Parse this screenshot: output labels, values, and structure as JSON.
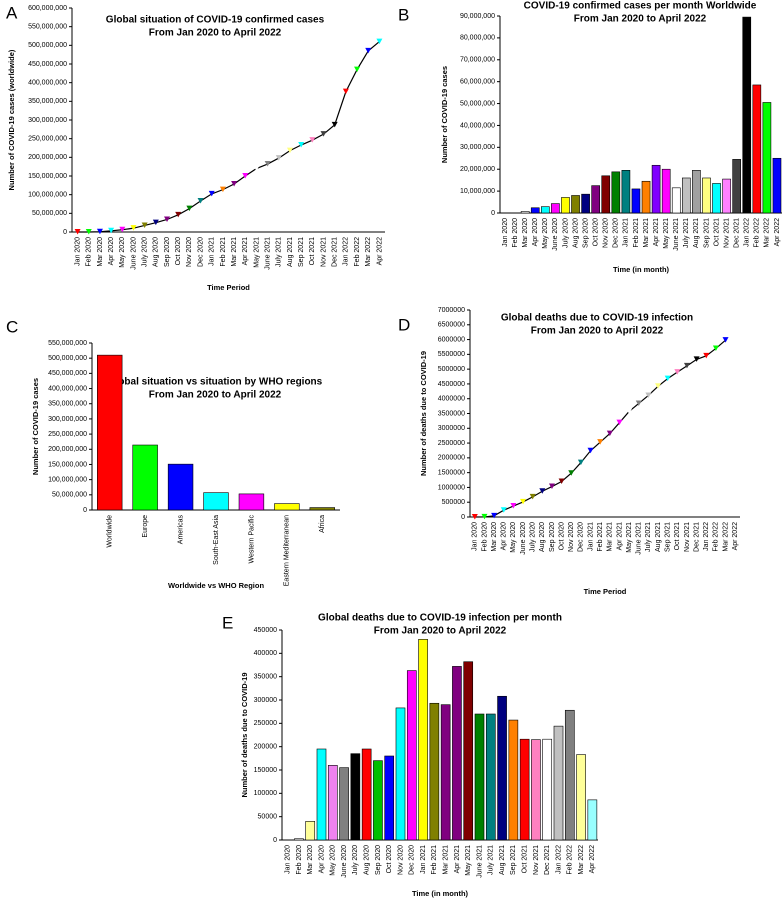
{
  "chart_data": [
    {
      "type": "line",
      "panel": "A",
      "title": "Global situation of COVID-19 confirmed cases",
      "subtitle": "From Jan 2020 to April 2022",
      "x_label": "Time Period",
      "y_label": "Number of COVID-19 cases (worldwide)",
      "categories": [
        "Jan 2020",
        "Feb 2020",
        "Mar 2020",
        "Apr 2020",
        "May 2020",
        "June 2020",
        "July 2020",
        "Aug 2020",
        "Sep 2020",
        "Oct 2020",
        "Nov 2020",
        "Dec 2020",
        "Jan 2021",
        "Feb 2021",
        "Mar 2021",
        "Apr 2021",
        "May 2021",
        "June 2021",
        "July 2021",
        "Aug 2021",
        "Sep 2021",
        "Oct 2021",
        "Nov 2021",
        "Dec 2021",
        "Jan 2022",
        "Feb 2022",
        "Mar 2022",
        "Apr 2022"
      ],
      "values": [
        10000,
        80000,
        750000,
        3200000,
        6000000,
        10300000,
        17500000,
        25000000,
        33500000,
        46000000,
        62500000,
        83000000,
        102000000,
        113500000,
        128500000,
        150000000,
        170000000,
        182000000,
        198000000,
        218000000,
        233000000,
        246000000,
        262000000,
        287000000,
        376000000,
        435000000,
        485000000,
        510000000
      ],
      "color": "#000000",
      "marker_colors": [
        "#ff0000",
        "#00ff00",
        "#0000ff",
        "#00ffff",
        "#ff00ff",
        "#ffff00",
        "#808000",
        "#000080",
        "#800080",
        "#800000",
        "#008000",
        "#008080",
        "#0000ff",
        "#ff8000",
        "#800080",
        "#ff00ff",
        "#ffffff",
        "#808080",
        "#c0c0c0",
        "#ffff80",
        "#00ffff",
        "#ff80c0",
        "#404040",
        "#000000",
        "#ff0000",
        "#00ff00",
        "#0000ff",
        "#00ffff"
      ],
      "ylim": [
        0,
        600000000
      ],
      "yticks": [
        0,
        {
          "value": 50000000,
          "label": "50,000,000"
        },
        {
          "value": 100000000,
          "label": "100,000,000"
        },
        {
          "value": 150000000,
          "label": "150,000,000"
        },
        {
          "value": 200000000,
          "label": "200,000,000"
        },
        {
          "value": 250000000,
          "label": "250,000,000"
        },
        {
          "value": 300000000,
          "label": "300,000,000"
        },
        {
          "value": 350000000,
          "label": "350,000,000"
        },
        {
          "value": 400000000,
          "label": "400,000,000"
        },
        {
          "value": 450000000,
          "label": "450,000,000"
        },
        {
          "value": 500000000,
          "label": "500,000,000"
        },
        {
          "value": 550000000,
          "label": "550,000,000"
        },
        {
          "value": 600000000,
          "label": "600,000,000"
        }
      ]
    },
    {
      "type": "bar",
      "panel": "B",
      "title": "COVID-19 confirmed cases per month Worldwide",
      "subtitle": "From Jan 2020 to April 2022",
      "x_label": "Time (in month)",
      "y_label": "Number of COVID-19 cases",
      "categories": [
        "Jan 2020",
        "Feb 2020",
        "Mar 2020",
        "Apr 2020",
        "May 2020",
        "June 2020",
        "July 2020",
        "Aug 2020",
        "Sep 2020",
        "Oct 2020",
        "Nov 2020",
        "Dec 2020",
        "Jan 2021",
        "Feb 2021",
        "Mar 2021",
        "Apr 2021",
        "May 2021",
        "June 2021",
        "July 2021",
        "Aug 2021",
        "Sep 2021",
        "Oct 2021",
        "Nov 2021",
        "Dec 2021",
        "Jan 2022",
        "Feb 2022",
        "Mar 2022",
        "Apr 2022"
      ],
      "values": [
        10000,
        70000,
        700000,
        2400000,
        2900000,
        4300000,
        7100000,
        8000000,
        8600000,
        12500000,
        17000000,
        18800000,
        19500000,
        11000000,
        14500000,
        21800000,
        20000000,
        11500000,
        16000000,
        19500000,
        16000000,
        13500000,
        15500000,
        24500000,
        89500000,
        58500000,
        50500000,
        25000000
      ],
      "colors": [
        "#ffffff",
        "#ffffff",
        "#ffffff",
        "#0000ff",
        "#00ffff",
        "#ff00ff",
        "#ffff00",
        "#808000",
        "#000080",
        "#800080",
        "#800000",
        "#008000",
        "#008080",
        "#0000ff",
        "#ff8000",
        "#8000ff",
        "#ff00ff",
        "#ffffff",
        "#c0c0c0",
        "#a0a0a0",
        "#ffff80",
        "#00ffff",
        "#ff80ff",
        "#404040",
        "#000000",
        "#ff0000",
        "#00ff00",
        "#0000ff"
      ],
      "ylim": [
        0,
        90000000
      ],
      "yticks": [
        0,
        {
          "value": 10000000,
          "label": "10,000,000"
        },
        {
          "value": 20000000,
          "label": "20,000,000"
        },
        {
          "value": 30000000,
          "label": "30,000,000"
        },
        {
          "value": 40000000,
          "label": "40,000,000"
        },
        {
          "value": 50000000,
          "label": "50,000,000"
        },
        {
          "value": 60000000,
          "label": "60,000,000"
        },
        {
          "value": 70000000,
          "label": "70,000,000"
        },
        {
          "value": 80000000,
          "label": "80,000,000"
        },
        {
          "value": 90000000,
          "label": "90,000,000"
        }
      ]
    },
    {
      "type": "bar",
      "panel": "C",
      "title": "Global situation vs  situation by WHO regions",
      "subtitle": "From Jan 2020 to April 2022",
      "x_label": "Worldwide vs WHO Region",
      "y_label": "Number of COVID-19 cases",
      "categories": [
        "Worldwide",
        "Europe",
        "Americas",
        "South-East Asia",
        "Western Pacific",
        "Eastern Mediterranean",
        "Africa"
      ],
      "values": [
        510000000,
        214000000,
        151000000,
        57000000,
        53000000,
        21000000,
        8000000
      ],
      "colors": [
        "#ff0000",
        "#00ff00",
        "#0000ff",
        "#00ffff",
        "#ff00ff",
        "#ffff00",
        "#808000"
      ],
      "ylim": [
        0,
        550000000
      ],
      "yticks": [
        0,
        {
          "value": 50000000,
          "label": "50,000,000"
        },
        {
          "value": 100000000,
          "label": "100,000,000"
        },
        {
          "value": 150000000,
          "label": "150,000,000"
        },
        {
          "value": 200000000,
          "label": "200,000,000"
        },
        {
          "value": 250000000,
          "label": "250,000,000"
        },
        {
          "value": 300000000,
          "label": "300,000,000"
        },
        {
          "value": 350000000,
          "label": "350,000,000"
        },
        {
          "value": 400000000,
          "label": "400,000,000"
        },
        {
          "value": 450000000,
          "label": "450,000,000"
        },
        {
          "value": 500000000,
          "label": "500,000,000"
        },
        {
          "value": 550000000,
          "label": "550,000,000"
        }
      ]
    },
    {
      "type": "line",
      "panel": "D",
      "title": "Global deaths due to COVID-19 infection",
      "subtitle": "From Jan 2020 to April 2022",
      "x_label": "Time Period",
      "y_label": "Number of deaths due to COVID-19",
      "categories": [
        "Jan 2020",
        "Feb 2020",
        "Mar 2020",
        "Apr 2020",
        "May 2020",
        "June 2020",
        "July 2020",
        "Aug 2020",
        "Sep 2020",
        "Oct 2020",
        "Nov 2020",
        "Dec 2020",
        "Jan 2021",
        "Feb 2021",
        "Mar 2021",
        "Apr 2021",
        "May 2021",
        "June 2021",
        "July 2021",
        "Aug 2021",
        "Sep 2021",
        "Oct 2021",
        "Nov 2021",
        "Dec 2021",
        "Jan 2022",
        "Feb 2022",
        "Mar 2022",
        "Apr 2022"
      ],
      "values": [
        200,
        2900,
        40000,
        230000,
        370000,
        510000,
        680000,
        870000,
        1030000,
        1200000,
        1480000,
        1840000,
        2240000,
        2530000,
        2820000,
        3190000,
        3570000,
        3840000,
        4110000,
        4420000,
        4680000,
        4900000,
        5110000,
        5330000,
        5450000,
        5700000,
        5980000,
        null
      ],
      "color": "#000000",
      "marker_colors": [
        "#ff0000",
        "#00ff00",
        "#0000ff",
        "#00ffff",
        "#ff00ff",
        "#ffff00",
        "#808000",
        "#000080",
        "#800080",
        "#800000",
        "#008000",
        "#008080",
        "#0000ff",
        "#ff8000",
        "#800080",
        "#ff00ff",
        "#ffffff",
        "#808080",
        "#c0c0c0",
        "#ffff80",
        "#00ffff",
        "#ff80c0",
        "#404040",
        "#000000",
        "#ff0000",
        "#00ff00",
        "#0000ff",
        "#00ffff"
      ],
      "ylim": [
        0,
        7000000
      ],
      "yticks": [
        0,
        500000,
        1000000,
        1500000,
        2000000,
        2500000,
        3000000,
        3500000,
        4000000,
        4500000,
        5000000,
        5500000,
        6000000,
        6500000,
        7000000
      ]
    },
    {
      "type": "bar",
      "panel": "E",
      "title": "Global deaths due to COVID-19 infection per month",
      "subtitle": "From Jan 2020 to April 2022",
      "x_label": "Time (in month)",
      "y_label": "Number of deaths due to COVID-19",
      "categories": [
        "Jan 2020",
        "Feb 2020",
        "Mar 2020",
        "Apr 2020",
        "May 2020",
        "June 2020",
        "July 2020",
        "Aug 2020",
        "Sep 2020",
        "Oct 2020",
        "Nov 2020",
        "Dec 2020",
        "Jan 2021",
        "Feb 2021",
        "Mar 2021",
        "Apr 2021",
        "May 2021",
        "June 2021",
        "July 2021",
        "Aug 2021",
        "Sep 2021",
        "Oct 2021",
        "Nov 2021",
        "Dec 2021",
        "Jan 2022",
        "Feb 2022",
        "Mar 2022",
        "Apr 2022"
      ],
      "values": [
        200,
        2700,
        40000,
        195000,
        160000,
        155000,
        185000,
        195000,
        170000,
        180000,
        283000,
        363000,
        430000,
        293000,
        290000,
        372000,
        382000,
        270000,
        270000,
        308000,
        257000,
        216000,
        215000,
        216000,
        244000,
        278000,
        183000,
        86000
      ],
      "colors": [
        "#ffffff",
        "#ffffff",
        "#ffff99",
        "#00ffff",
        "#ee82ee",
        "#808080",
        "#000000",
        "#ff0000",
        "#00c000",
        "#0000ff",
        "#00ffff",
        "#ff00ff",
        "#ffff00",
        "#808000",
        "#800080",
        "#800080",
        "#800000",
        "#008000",
        "#008080",
        "#000080",
        "#ff8000",
        "#ff0000",
        "#ff80c0",
        "#ffffff",
        "#c0c0c0",
        "#808080",
        "#ffff99",
        "#99ffff"
      ],
      "ylim": [
        0,
        450000
      ],
      "yticks": [
        0,
        50000,
        100000,
        150000,
        200000,
        250000,
        300000,
        350000,
        400000,
        450000
      ]
    }
  ]
}
